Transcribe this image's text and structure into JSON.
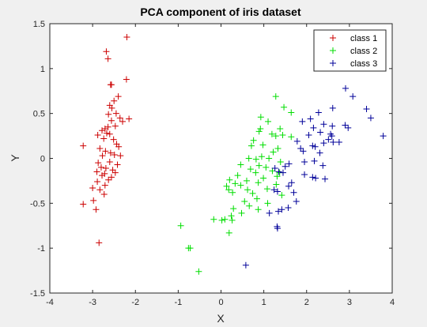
{
  "chart_data": {
    "type": "scatter",
    "title": "PCA component of iris dataset",
    "xlabel": "X",
    "ylabel": "Y",
    "xlim": [
      -4,
      4
    ],
    "ylim": [
      -1.5,
      1.5
    ],
    "xticks": [
      "-4",
      "-3",
      "-2",
      "-1",
      "0",
      "1",
      "2",
      "3",
      "4"
    ],
    "yticks": [
      "-1.5",
      "-1",
      "-0.5",
      "0",
      "0.5",
      "1",
      "1.5"
    ],
    "marker": "plus",
    "grid": false,
    "legend_position": "top-right",
    "series": [
      {
        "name": "class 1",
        "color": "#cc0000",
        "points": [
          [
            -2.2,
            1.35
          ],
          [
            -2.68,
            1.19
          ],
          [
            -2.64,
            1.11
          ],
          [
            -2.58,
            0.82
          ],
          [
            -2.56,
            0.82
          ],
          [
            -2.21,
            0.88
          ],
          [
            -2.4,
            0.69
          ],
          [
            -2.5,
            0.64
          ],
          [
            -2.6,
            0.59
          ],
          [
            -2.55,
            0.56
          ],
          [
            -2.45,
            0.5
          ],
          [
            -2.63,
            0.49
          ],
          [
            -2.36,
            0.45
          ],
          [
            -2.15,
            0.44
          ],
          [
            -2.3,
            0.41
          ],
          [
            -2.56,
            0.42
          ],
          [
            -2.47,
            0.36
          ],
          [
            -2.64,
            0.35
          ],
          [
            -2.71,
            0.33
          ],
          [
            -2.78,
            0.31
          ],
          [
            -2.67,
            0.28
          ],
          [
            -2.6,
            0.27
          ],
          [
            -2.88,
            0.26
          ],
          [
            -2.74,
            0.22
          ],
          [
            -2.51,
            0.21
          ],
          [
            -2.44,
            0.16
          ],
          [
            -2.39,
            0.13
          ],
          [
            -3.22,
            0.14
          ],
          [
            -2.83,
            0.11
          ],
          [
            -2.7,
            0.08
          ],
          [
            -2.58,
            0.06
          ],
          [
            -2.49,
            0.04
          ],
          [
            -2.35,
            0.03
          ],
          [
            -2.77,
            0.03
          ],
          [
            -2.87,
            -0.05
          ],
          [
            -2.6,
            -0.04
          ],
          [
            -2.42,
            -0.07
          ],
          [
            -2.69,
            -0.11
          ],
          [
            -2.8,
            -0.1
          ],
          [
            -2.53,
            -0.13
          ],
          [
            -2.9,
            -0.15
          ],
          [
            -2.72,
            -0.17
          ],
          [
            -2.47,
            -0.16
          ],
          [
            -2.78,
            -0.19
          ],
          [
            -2.56,
            -0.21
          ],
          [
            -2.89,
            -0.26
          ],
          [
            -2.63,
            -0.24
          ],
          [
            -2.71,
            -0.3
          ],
          [
            -3.0,
            -0.33
          ],
          [
            -2.83,
            -0.35
          ],
          [
            -2.73,
            -0.4
          ],
          [
            -2.98,
            -0.47
          ],
          [
            -3.22,
            -0.51
          ],
          [
            -2.92,
            -0.57
          ],
          [
            -2.85,
            -0.94
          ]
        ]
      },
      {
        "name": "class 2",
        "color": "#00dd00",
        "points": [
          [
            1.28,
            0.69
          ],
          [
            1.47,
            0.57
          ],
          [
            1.64,
            0.51
          ],
          [
            0.93,
            0.46
          ],
          [
            1.1,
            0.41
          ],
          [
            1.38,
            0.33
          ],
          [
            0.92,
            0.33
          ],
          [
            0.89,
            0.3
          ],
          [
            1.19,
            0.27
          ],
          [
            1.44,
            0.26
          ],
          [
            1.28,
            0.25
          ],
          [
            1.64,
            0.24
          ],
          [
            0.76,
            0.2
          ],
          [
            0.98,
            0.15
          ],
          [
            0.71,
            0.14
          ],
          [
            1.33,
            0.11
          ],
          [
            1.22,
            0.07
          ],
          [
            0.95,
            0.02
          ],
          [
            0.82,
            -0.01
          ],
          [
            0.65,
            0.0
          ],
          [
            1.12,
            0.0
          ],
          [
            1.39,
            -0.04
          ],
          [
            0.46,
            -0.07
          ],
          [
            0.89,
            -0.08
          ],
          [
            1.05,
            -0.1
          ],
          [
            0.69,
            -0.12
          ],
          [
            1.2,
            -0.14
          ],
          [
            1.37,
            -0.16
          ],
          [
            0.39,
            -0.19
          ],
          [
            0.81,
            -0.16
          ],
          [
            1.31,
            -0.2
          ],
          [
            0.99,
            -0.22
          ],
          [
            0.2,
            -0.24
          ],
          [
            0.6,
            -0.25
          ],
          [
            0.33,
            -0.28
          ],
          [
            0.87,
            -0.27
          ],
          [
            1.29,
            -0.29
          ],
          [
            0.13,
            -0.31
          ],
          [
            0.46,
            -0.3
          ],
          [
            1.08,
            -0.34
          ],
          [
            0.62,
            -0.35
          ],
          [
            0.18,
            -0.35
          ],
          [
            0.27,
            -0.38
          ],
          [
            0.74,
            -0.39
          ],
          [
            1.42,
            -0.41
          ],
          [
            0.84,
            -0.45
          ],
          [
            0.55,
            -0.48
          ],
          [
            1.09,
            -0.5
          ],
          [
            0.29,
            -0.56
          ],
          [
            0.66,
            -0.53
          ],
          [
            0.87,
            -0.57
          ],
          [
            0.48,
            -0.61
          ],
          [
            0.24,
            -0.64
          ],
          [
            0.09,
            -0.68
          ],
          [
            0.26,
            -0.69
          ],
          [
            -0.17,
            -0.68
          ],
          [
            0.02,
            -0.69
          ],
          [
            -0.94,
            -0.75
          ],
          [
            -0.76,
            -1.0
          ],
          [
            -0.72,
            -1.0
          ],
          [
            -0.52,
            -1.26
          ],
          [
            0.19,
            -0.83
          ]
        ]
      },
      {
        "name": "class 3",
        "color": "#000099",
        "points": [
          [
            2.91,
            0.78
          ],
          [
            3.08,
            0.69
          ],
          [
            2.61,
            0.56
          ],
          [
            3.4,
            0.55
          ],
          [
            2.28,
            0.51
          ],
          [
            3.5,
            0.45
          ],
          [
            2.09,
            0.44
          ],
          [
            2.4,
            0.38
          ],
          [
            1.9,
            0.41
          ],
          [
            2.6,
            0.36
          ],
          [
            2.16,
            0.34
          ],
          [
            2.9,
            0.37
          ],
          [
            2.97,
            0.34
          ],
          [
            2.32,
            0.29
          ],
          [
            2.59,
            0.25
          ],
          [
            2.05,
            0.26
          ],
          [
            2.51,
            0.21
          ],
          [
            2.4,
            0.17
          ],
          [
            1.78,
            0.19
          ],
          [
            2.2,
            0.13
          ],
          [
            2.14,
            0.14
          ],
          [
            1.86,
            0.11
          ],
          [
            1.92,
            0.08
          ],
          [
            2.31,
            0.06
          ],
          [
            2.62,
            0.18
          ],
          [
            3.79,
            0.25
          ],
          [
            2.18,
            -0.03
          ],
          [
            2.38,
            -0.08
          ],
          [
            1.95,
            -0.04
          ],
          [
            1.59,
            -0.06
          ],
          [
            1.5,
            -0.09
          ],
          [
            1.26,
            -0.11
          ],
          [
            1.35,
            -0.15
          ],
          [
            1.45,
            -0.16
          ],
          [
            1.95,
            -0.18
          ],
          [
            2.14,
            -0.21
          ],
          [
            2.21,
            -0.22
          ],
          [
            2.43,
            -0.23
          ],
          [
            1.65,
            -0.27
          ],
          [
            1.58,
            -0.31
          ],
          [
            1.24,
            -0.35
          ],
          [
            1.32,
            -0.37
          ],
          [
            1.7,
            -0.38
          ],
          [
            1.76,
            -0.48
          ],
          [
            1.57,
            -0.55
          ],
          [
            1.42,
            -0.57
          ],
          [
            1.13,
            -0.61
          ],
          [
            1.34,
            -0.59
          ],
          [
            1.31,
            -0.76
          ],
          [
            1.32,
            -0.78
          ],
          [
            0.58,
            -1.19
          ],
          [
            2.56,
            0.27
          ],
          [
            2.76,
            0.18
          ]
        ]
      }
    ]
  }
}
